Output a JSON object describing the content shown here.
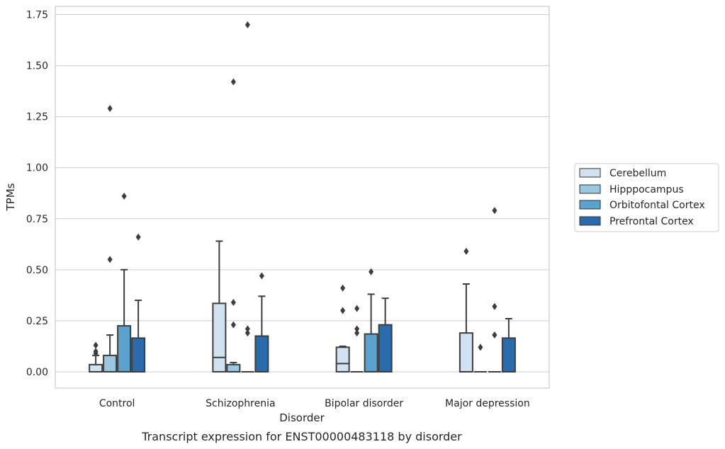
{
  "chart_data": {
    "type": "box",
    "caption": "Transcript expression for ENST00000483118 by disorder",
    "xlabel": "Disorder",
    "ylabel": "TPMs",
    "ylim": [
      -0.08,
      1.79
    ],
    "yticks": [
      0.0,
      0.25,
      0.5,
      0.75,
      1.0,
      1.25,
      1.5,
      1.75
    ],
    "ytick_labels": [
      "0.00",
      "0.25",
      "0.50",
      "0.75",
      "1.00",
      "1.25",
      "1.50",
      "1.75"
    ],
    "grid": "horizontal",
    "legend_position": "right",
    "categories": [
      "Control",
      "Schizophrenia",
      "Bipolar disorder",
      "Major depression"
    ],
    "series": [
      {
        "name": "Cerebellum",
        "color": "#d1e2f2",
        "boxes": [
          {
            "whisker_low": 0.0,
            "q1": 0.0,
            "median": 0.0,
            "q3": 0.035,
            "whisker_high": 0.08,
            "outliers": [
              0.09,
              0.1,
              0.13
            ]
          },
          {
            "whisker_low": 0.0,
            "q1": 0.0,
            "median": 0.07,
            "q3": 0.335,
            "whisker_high": 0.64,
            "outliers": []
          },
          {
            "whisker_low": 0.0,
            "q1": 0.0,
            "median": 0.04,
            "q3": 0.12,
            "whisker_high": 0.125,
            "outliers": [
              0.3,
              0.41
            ]
          },
          {
            "whisker_low": 0.0,
            "q1": 0.0,
            "median": 0.0,
            "q3": 0.19,
            "whisker_high": 0.43,
            "outliers": [
              0.59
            ]
          }
        ]
      },
      {
        "name": "Hipppocampus",
        "color": "#9ac8e0",
        "boxes": [
          {
            "whisker_low": 0.0,
            "q1": 0.0,
            "median": 0.0,
            "q3": 0.08,
            "whisker_high": 0.18,
            "outliers": [
              0.55,
              1.29
            ]
          },
          {
            "whisker_low": 0.0,
            "q1": 0.0,
            "median": 0.0,
            "q3": 0.035,
            "whisker_high": 0.045,
            "outliers": [
              0.23,
              0.34,
              1.42
            ]
          },
          {
            "whisker_low": 0.0,
            "q1": 0.0,
            "median": 0.0,
            "q3": 0.0,
            "whisker_high": 0.0,
            "outliers": [
              0.19,
              0.21,
              0.31
            ]
          },
          {
            "whisker_low": 0.0,
            "q1": 0.0,
            "median": 0.0,
            "q3": 0.0,
            "whisker_high": 0.0,
            "outliers": [
              0.12
            ]
          }
        ]
      },
      {
        "name": "Orbitofontal Cortex",
        "color": "#5ba2cf",
        "boxes": [
          {
            "whisker_low": 0.0,
            "q1": 0.0,
            "median": 0.0,
            "q3": 0.225,
            "whisker_high": 0.5,
            "outliers": [
              0.86
            ]
          },
          {
            "whisker_low": 0.0,
            "q1": 0.0,
            "median": 0.0,
            "q3": 0.0,
            "whisker_high": 0.0,
            "outliers": [
              0.19,
              0.21,
              1.7
            ]
          },
          {
            "whisker_low": 0.0,
            "q1": 0.0,
            "median": 0.0,
            "q3": 0.185,
            "whisker_high": 0.38,
            "outliers": [
              0.49
            ]
          },
          {
            "whisker_low": 0.0,
            "q1": 0.0,
            "median": 0.0,
            "q3": 0.0,
            "whisker_high": 0.0,
            "outliers": [
              0.18,
              0.32,
              0.79
            ]
          }
        ]
      },
      {
        "name": "Prefrontal Cortex",
        "color": "#2a6bad",
        "boxes": [
          {
            "whisker_low": 0.0,
            "q1": 0.0,
            "median": 0.0,
            "q3": 0.165,
            "whisker_high": 0.35,
            "outliers": [
              0.66
            ]
          },
          {
            "whisker_low": 0.0,
            "q1": 0.0,
            "median": 0.0,
            "q3": 0.175,
            "whisker_high": 0.37,
            "outliers": [
              0.47
            ]
          },
          {
            "whisker_low": 0.0,
            "q1": 0.0,
            "median": 0.0,
            "q3": 0.23,
            "whisker_high": 0.36,
            "outliers": []
          },
          {
            "whisker_low": 0.0,
            "q1": 0.0,
            "median": 0.0,
            "q3": 0.165,
            "whisker_high": 0.26,
            "outliers": []
          }
        ]
      }
    ]
  }
}
